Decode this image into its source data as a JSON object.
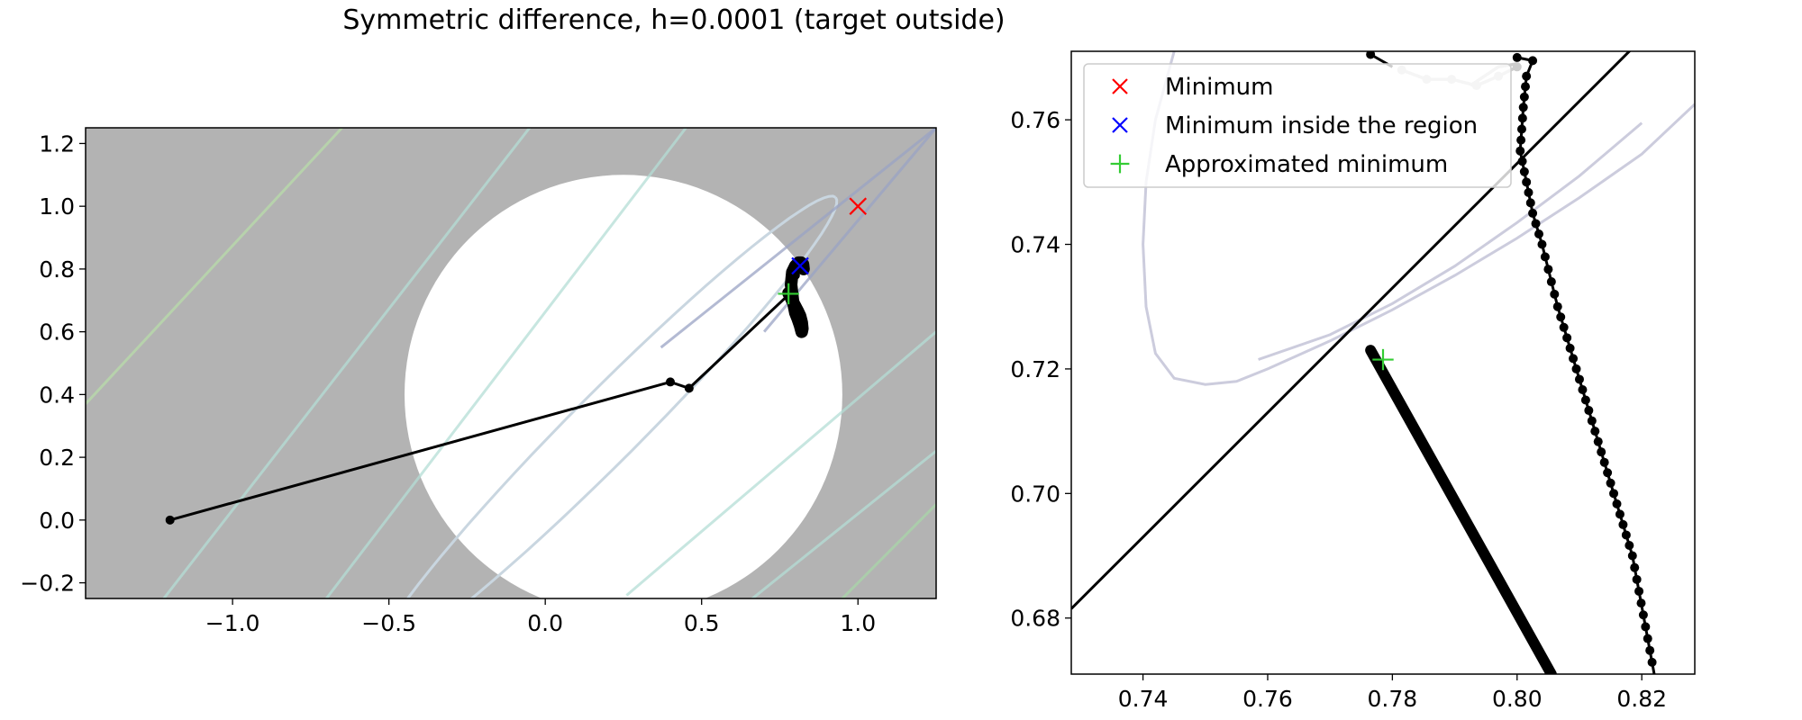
{
  "suptitle": "Symmetric difference, h=0.0001 (target outside)",
  "colors": {
    "region_fill": "#ffffff",
    "outside_fill": "#b3b3b3",
    "path": "#000000",
    "faded_path": "#cccccc",
    "minimum": "#ff0000",
    "minimum_inside": "#0000ff",
    "approx_minimum": "#33cc33"
  },
  "chart_data": [
    {
      "type": "line",
      "title": "",
      "xlabel": "",
      "ylabel": "",
      "xlim": [
        -1.47,
        1.25
      ],
      "ylim": [
        -0.25,
        1.25
      ],
      "xticks": [
        "−1.0",
        "−0.5",
        "0.0",
        "0.5",
        "1.0"
      ],
      "xtick_values": [
        -1.0,
        -0.5,
        0.0,
        0.5,
        1.0
      ],
      "yticks": [
        "−0.2",
        "0.0",
        "0.2",
        "0.4",
        "0.6",
        "0.8",
        "1.0",
        "1.2"
      ],
      "ytick_values": [
        -0.2,
        0.0,
        0.2,
        0.4,
        0.6,
        0.8,
        1.0,
        1.2
      ],
      "region": {
        "shape": "circle",
        "center": [
          0.25,
          0.4
        ],
        "radius": 0.7
      },
      "contours": [
        {
          "kind": "ellipse",
          "center": [
            0.2,
            0.3
          ],
          "a": 1.03,
          "b": 0.11,
          "angle_deg": 45,
          "color": "#c9d6e0"
        },
        {
          "kind": "line",
          "from": [
            0.26,
            -0.24
          ],
          "to": [
            1.25,
            0.6
          ],
          "color": "#b4ddd5"
        },
        {
          "kind": "line",
          "from": [
            0.6,
            -0.3
          ],
          "to": [
            1.25,
            0.22
          ],
          "color": "#b4ddd5"
        },
        {
          "kind": "line",
          "from": [
            0.9,
            -0.3
          ],
          "to": [
            1.25,
            0.05
          ],
          "color": "#a8d6a8"
        },
        {
          "kind": "line",
          "from": [
            -1.22,
            -0.25
          ],
          "to": [
            -0.05,
            1.25
          ],
          "color": "#b4ddd5"
        },
        {
          "kind": "line",
          "from": [
            -0.7,
            -0.25
          ],
          "to": [
            0.45,
            1.25
          ],
          "color": "#b4ddd5"
        },
        {
          "kind": "line",
          "from": [
            -1.47,
            0.37
          ],
          "to": [
            -0.65,
            1.25
          ],
          "color": "#b8dcaa"
        },
        {
          "kind": "line",
          "from": [
            0.37,
            0.55
          ],
          "to": [
            1.25,
            1.25
          ],
          "color": "#9aa3c4"
        },
        {
          "kind": "line",
          "from": [
            0.7,
            0.6
          ],
          "to": [
            1.25,
            1.25
          ],
          "color": "#9aa3c4"
        }
      ],
      "path": {
        "x": [
          -1.2,
          0.4,
          0.46,
          0.78,
          0.8
        ],
        "y": [
          0.0,
          0.44,
          0.42,
          0.72,
          0.78
        ]
      },
      "trail": {
        "x": [
          0.778,
          0.785,
          0.792,
          0.8,
          0.808,
          0.815,
          0.82,
          0.822,
          0.82,
          0.815,
          0.808,
          0.8,
          0.792,
          0.786,
          0.79,
          0.8,
          0.81,
          0.818,
          0.824,
          0.826
        ],
        "y": [
          0.723,
          0.71,
          0.695,
          0.68,
          0.665,
          0.65,
          0.63,
          0.61,
          0.6,
          0.62,
          0.64,
          0.66,
          0.7,
          0.75,
          0.79,
          0.81,
          0.82,
          0.82,
          0.815,
          0.8
        ]
      },
      "markers": [
        {
          "label": "Minimum",
          "x": 1.0,
          "y": 1.0,
          "style": "x",
          "color": "#ff0000"
        },
        {
          "label": "Minimum inside the region",
          "x": 0.815,
          "y": 0.81,
          "style": "x",
          "color": "#0000ff"
        },
        {
          "label": "Approximated minimum",
          "x": 0.778,
          "y": 0.721,
          "style": "+",
          "color": "#33cc33"
        }
      ]
    },
    {
      "type": "line",
      "title": "",
      "xlabel": "",
      "ylabel": "",
      "xlim": [
        0.7285,
        0.8285
      ],
      "ylim": [
        0.671,
        0.771
      ],
      "xticks": [
        "0.74",
        "0.76",
        "0.78",
        "0.80",
        "0.82"
      ],
      "xtick_values": [
        0.74,
        0.76,
        0.78,
        0.8,
        0.82
      ],
      "yticks": [
        "0.68",
        "0.70",
        "0.72",
        "0.74",
        "0.76"
      ],
      "ytick_values": [
        0.68,
        0.7,
        0.72,
        0.74,
        0.76
      ],
      "boundary": {
        "x": [
          0.7285,
          0.8185
        ],
        "y": [
          0.6815,
          0.7715
        ]
      },
      "contour": {
        "color": "#ccccdd",
        "x": [
          0.745,
          0.742,
          0.7405,
          0.74,
          0.7405,
          0.742,
          0.745,
          0.75,
          0.755,
          0.76,
          0.77,
          0.78,
          0.79,
          0.8,
          0.81,
          0.82,
          0.8285
        ],
        "y": [
          0.771,
          0.76,
          0.75,
          0.74,
          0.73,
          0.7225,
          0.7185,
          0.7175,
          0.718,
          0.72,
          0.7245,
          0.7295,
          0.735,
          0.741,
          0.7475,
          0.7545,
          0.7625
        ]
      },
      "contour2": {
        "color": "#ccccdd",
        "x": [
          0.7585,
          0.77,
          0.78,
          0.79,
          0.8,
          0.81,
          0.82
        ],
        "y": [
          0.7215,
          0.7255,
          0.7305,
          0.7365,
          0.7435,
          0.751,
          0.7595
        ]
      },
      "faded_path": {
        "x": [
          0.8,
          0.797,
          0.7935,
          0.7895,
          0.7855,
          0.7815
        ],
        "y": [
          0.7685,
          0.767,
          0.7655,
          0.7665,
          0.7665,
          0.768
        ]
      },
      "faded_path2": {
        "x": [
          0.7925,
          0.797,
          0.8
        ],
        "y": [
          0.7655,
          0.7685,
          0.769
        ]
      },
      "stray_line": {
        "x": [
          0.7765,
          0.78
        ],
        "y": [
          0.7705,
          0.7685
        ]
      },
      "trail1": {
        "x_start": 0.7765,
        "y_start": 0.723,
        "x_end": 0.8055,
        "y_end": 0.671
      },
      "trail2": {
        "x": [
          0.8,
          0.8025,
          0.8015,
          0.801,
          0.8005,
          0.8015,
          0.8025,
          0.804,
          0.8065,
          0.8095,
          0.8125,
          0.8155,
          0.8185,
          0.822
        ],
        "y": [
          0.77,
          0.7695,
          0.767,
          0.762,
          0.755,
          0.75,
          0.745,
          0.74,
          0.73,
          0.72,
          0.71,
          0.7,
          0.69,
          0.671
        ]
      },
      "markers": [
        {
          "label": "Approximated minimum",
          "x": 0.7785,
          "y": 0.7215,
          "style": "+",
          "color": "#33cc33"
        }
      ]
    }
  ],
  "legend": {
    "placement": "upper left",
    "entries": [
      {
        "label": "Minimum",
        "style": "x",
        "color": "#ff0000"
      },
      {
        "label": "Minimum inside the region",
        "style": "x",
        "color": "#0000ff"
      },
      {
        "label": "Approximated minimum",
        "style": "+",
        "color": "#33cc33"
      }
    ]
  }
}
